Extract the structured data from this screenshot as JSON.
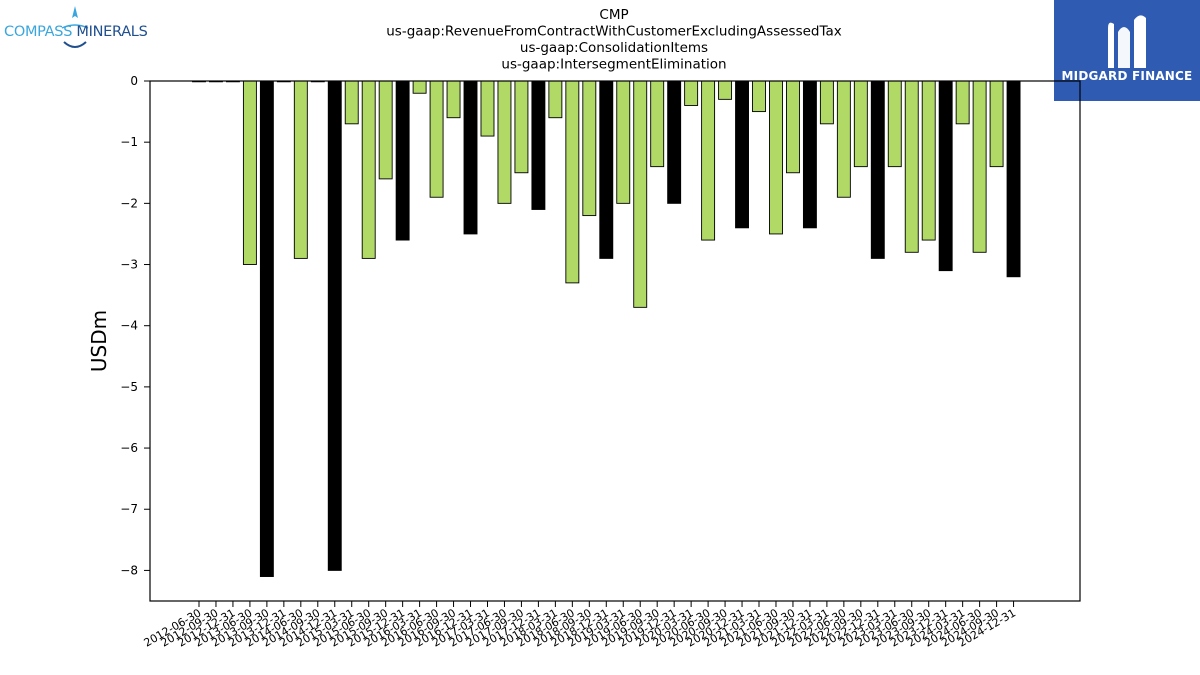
{
  "logos": {
    "left": {
      "word1": "COMPASS",
      "word2": "MINERALS",
      "color_primary": "#3aa6dd",
      "color_secondary": "#1f4f8f",
      "icon": "compass-star-icon"
    },
    "right": {
      "text": "MIDGARD FINANCE",
      "background": "#2f5cb2",
      "icon": "midgard-m-icon"
    }
  },
  "colors": {
    "green_bar": "#b0d966",
    "black_bar": "#000000",
    "edge": "#000000"
  },
  "chart_data": {
    "type": "bar",
    "title_lines": [
      "CMP",
      "us-gaap:RevenueFromContractWithCustomerExcludingAssessedTax",
      "us-gaap:ConsolidationItems",
      "us-gaap:IntersegmentElimination"
    ],
    "xlabel": "",
    "ylabel": "USDm",
    "ylim": [
      -8.5,
      0
    ],
    "yticks": [
      0,
      -1,
      -2,
      -3,
      -4,
      -5,
      -6,
      -7,
      -8
    ],
    "ytick_labels": [
      "0",
      "−1",
      "−2",
      "−3",
      "−4",
      "−5",
      "−6",
      "−7",
      "−8"
    ],
    "grid": false,
    "legend": "none",
    "categories": [
      "2012-06-30",
      "2012-09-30",
      "2012-12-31",
      "2013-06-30",
      "2013-09-30",
      "2013-12-31",
      "2014-06-30",
      "2014-09-30",
      "2014-12-31",
      "2015-03-31",
      "2015-06-30",
      "2015-09-30",
      "2015-12-31",
      "2016-03-31",
      "2016-06-30",
      "2016-09-30",
      "2016-12-31",
      "2017-03-31",
      "2017-06-30",
      "2017-09-30",
      "2017-12-31",
      "2018-03-31",
      "2018-06-30",
      "2018-09-30",
      "2018-12-31",
      "2019-03-31",
      "2019-06-30",
      "2019-09-30",
      "2019-12-31",
      "2020-03-31",
      "2020-06-30",
      "2020-09-30",
      "2020-12-31",
      "2021-03-31",
      "2021-06-30",
      "2021-09-30",
      "2021-12-31",
      "2022-03-31",
      "2022-06-30",
      "2022-09-30",
      "2022-12-31",
      "2023-03-31",
      "2023-06-30",
      "2023-09-30",
      "2023-12-31",
      "2024-03-31",
      "2024-06-30",
      "2024-09-30",
      "2024-12-31"
    ],
    "x_tick_labels": [
      "2012-06-30",
      "2012-09-30",
      "2012-12-31",
      "2013-06-30",
      "2013-09-30",
      "2013-12-31",
      "2014-06-30",
      "2014-09-30",
      "2014-12-31",
      "2015-03-31",
      "2015-06-30",
      "2015-09-30",
      "2015-12-31",
      "2016-03-31",
      "2016-06-30",
      "2016-09-30",
      "2016-12-31",
      "2017-03-31",
      "2017-06-30",
      "2017-09-30",
      "2017-12-31",
      "2018-03-31",
      "2018-06-30",
      "2018-09-30",
      "2018-12-31",
      "2019-03-31",
      "2019-06-30",
      "2019-09-30",
      "2019-12-31",
      "2020-03-31",
      "2020-06-30",
      "2020-09-30",
      "2020-12-31",
      "2021-03-31",
      "2021-06-30",
      "2021-09-30",
      "2021-12-31",
      "2022-03-31",
      "2022-06-30",
      "2022-09-30",
      "2022-12-31",
      "2023-03-31",
      "2023-06-30",
      "2023-09-30",
      "2023-12-31",
      "2024-03-31",
      "2024-06-30",
      "2024-09-30",
      "2024-12-31"
    ],
    "values": [
      0,
      0,
      0,
      -3.0,
      -8.1,
      0,
      -2.9,
      0,
      -8.0,
      -0.7,
      -2.9,
      -1.6,
      -2.6,
      -0.2,
      -1.9,
      -0.6,
      -2.5,
      -0.9,
      -2.0,
      -1.5,
      -2.1,
      -0.6,
      -3.3,
      -2.2,
      -2.9,
      -2.0,
      -3.7,
      -1.4,
      -2.0,
      -0.4,
      -2.6,
      -0.3,
      -2.4,
      -0.5,
      -2.5,
      -1.5,
      -2.4,
      -0.7,
      -1.9,
      -1.4,
      -2.9,
      -1.4,
      -2.8,
      -2.6,
      -3.1,
      -0.7,
      -2.8,
      -1.4,
      -3.2
    ],
    "bar_colors": [
      "green",
      "green",
      "green",
      "green",
      "black",
      "green",
      "green",
      "green",
      "black",
      "green",
      "green",
      "green",
      "black",
      "green",
      "green",
      "green",
      "black",
      "green",
      "green",
      "green",
      "black",
      "green",
      "green",
      "green",
      "black",
      "green",
      "green",
      "green",
      "black",
      "green",
      "green",
      "green",
      "black",
      "green",
      "green",
      "green",
      "black",
      "green",
      "green",
      "green",
      "black",
      "green",
      "green",
      "green",
      "black",
      "green",
      "green",
      "green",
      "black"
    ]
  }
}
